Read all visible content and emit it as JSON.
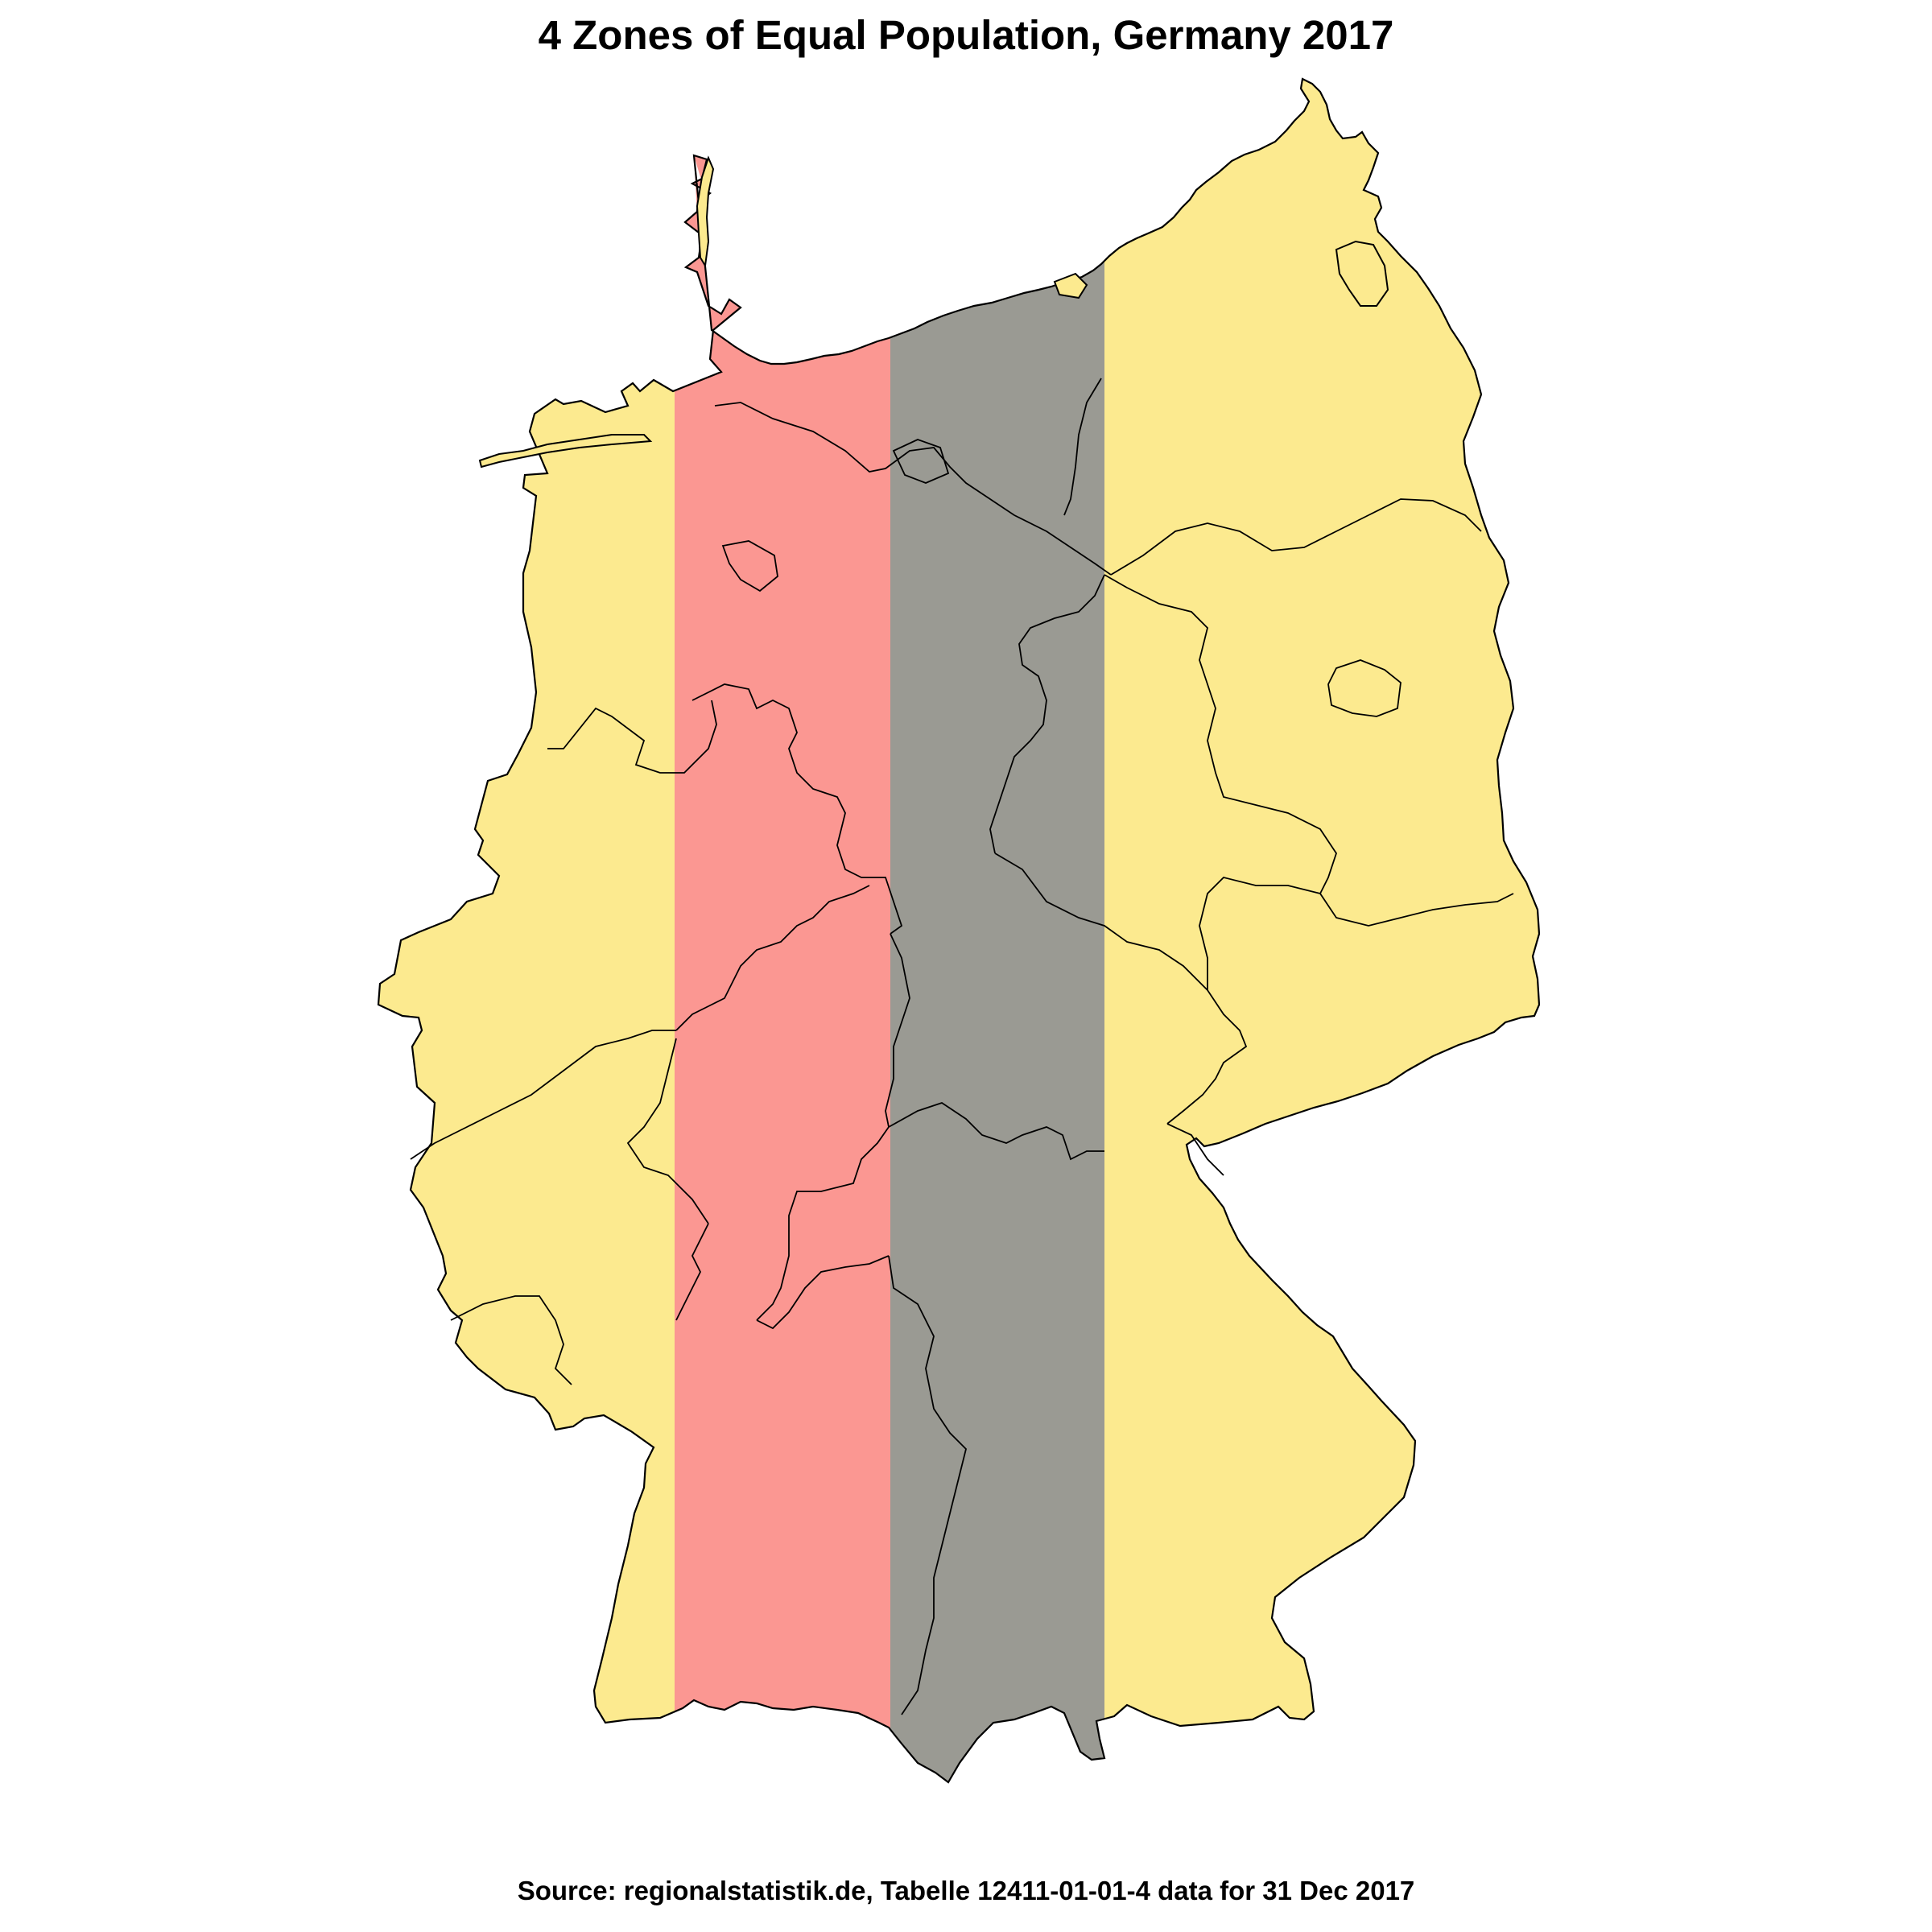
{
  "title": "4 Zones of Equal Population, Germany 2017",
  "source": "Source: regionalstatistik.de, Tabelle 12411-01-01-4 data for 31 Dec 2017",
  "zones": [
    {
      "id": "zone-1",
      "color": "#FCEA8F"
    },
    {
      "id": "zone-2",
      "color": "#FB9792"
    },
    {
      "id": "zone-3",
      "color": "#9A9A93"
    },
    {
      "id": "zone-4",
      "color": "#FCEA8F"
    }
  ],
  "border_color": "#000000"
}
